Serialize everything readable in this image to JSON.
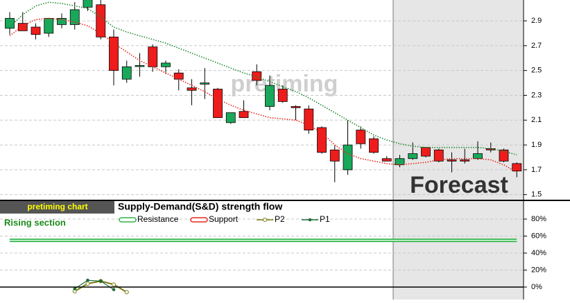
{
  "chart_data": [
    {
      "type": "candlestick",
      "annotations": [
        "pretiming",
        "Forecast"
      ],
      "categories": [
        null,
        null,
        null,
        null,
        null,
        null,
        null,
        null,
        null,
        null,
        null,
        null,
        null,
        null,
        null,
        null,
        null,
        null,
        null,
        null,
        null,
        null,
        null,
        null,
        null,
        null,
        null,
        null,
        null,
        null,
        null,
        null,
        null,
        null,
        null,
        null,
        null,
        null,
        null,
        null
      ],
      "open": [
        2.84,
        2.88,
        2.85,
        2.8,
        2.87,
        2.87,
        3.01,
        3.03,
        2.77,
        2.43,
        2.54,
        2.69,
        2.53,
        2.48,
        2.36,
        2.39,
        2.35,
        2.08,
        2.17,
        2.49,
        2.21,
        2.35,
        2.21,
        2.19,
        2.04,
        1.86,
        1.7,
        2.02,
        1.95,
        1.79,
        1.74,
        1.79,
        1.88,
        1.86,
        1.78,
        1.78,
        1.79,
        1.87,
        1.86,
        1.75
      ],
      "high": [
        2.97,
        2.97,
        2.88,
        2.92,
        2.96,
        3.05,
        3.07,
        3.07,
        2.83,
        2.58,
        2.64,
        2.71,
        2.58,
        2.51,
        2.43,
        2.52,
        2.36,
        2.15,
        2.26,
        2.55,
        2.46,
        2.38,
        2.22,
        2.22,
        2.05,
        1.9,
        2.1,
        2.05,
        1.97,
        1.81,
        1.82,
        1.92,
        1.88,
        1.87,
        1.84,
        1.87,
        1.93,
        1.92,
        1.87,
        1.76
      ],
      "low": [
        2.79,
        2.83,
        2.75,
        2.77,
        2.84,
        2.83,
        2.98,
        2.75,
        2.38,
        2.4,
        2.45,
        2.49,
        2.47,
        2.34,
        2.22,
        2.27,
        2.13,
        2.07,
        2.12,
        2.38,
        2.18,
        2.24,
        2.1,
        1.99,
        1.83,
        1.6,
        1.66,
        1.87,
        1.83,
        1.77,
        1.72,
        1.78,
        1.8,
        1.76,
        1.68,
        1.75,
        1.78,
        1.84,
        1.76,
        1.64
      ],
      "close": [
        2.92,
        2.82,
        2.79,
        2.92,
        2.92,
        2.99,
        3.07,
        2.77,
        2.5,
        2.53,
        2.54,
        2.53,
        2.56,
        2.43,
        2.34,
        2.4,
        2.12,
        2.16,
        2.12,
        2.42,
        2.38,
        2.25,
        2.2,
        2.02,
        1.84,
        1.77,
        1.9,
        1.91,
        1.84,
        1.77,
        1.79,
        1.83,
        1.81,
        1.77,
        1.77,
        1.77,
        1.83,
        1.86,
        1.77,
        1.69
      ],
      "up_color": "#19a85a",
      "down_color": "#ee1c1c",
      "lines": [
        {
          "color": "#1e8a2e",
          "values": [
            2.85,
            2.95,
            3.02,
            3.05,
            3.04,
            3.02,
            3.0,
            2.93,
            2.85,
            2.81,
            2.78,
            2.75,
            2.72,
            2.68,
            2.64,
            2.6,
            2.56,
            2.52,
            2.48,
            2.45,
            2.41,
            2.37,
            2.33,
            2.28,
            2.22,
            2.16,
            2.1,
            2.04,
            1.98,
            1.94,
            1.91,
            1.89,
            1.88,
            1.88,
            1.88,
            1.88,
            1.88,
            1.87,
            1.85,
            1.82
          ]
        },
        {
          "color": "#e8261c",
          "values": [
            2.78,
            2.86,
            2.91,
            2.92,
            2.91,
            2.89,
            2.86,
            2.8,
            2.72,
            2.65,
            2.58,
            2.53,
            2.48,
            2.43,
            2.38,
            2.33,
            2.27,
            2.22,
            2.18,
            2.15,
            2.12,
            2.11,
            2.1,
            2.06,
            2.0,
            1.9,
            1.83,
            1.79,
            1.77,
            1.75,
            1.74,
            1.75,
            1.76,
            1.78,
            1.79,
            1.79,
            1.79,
            1.78,
            1.74,
            1.68
          ]
        }
      ],
      "ylim": [
        1.459,
        3.068
      ],
      "yticks": [
        1.5,
        1.7,
        1.9,
        2.1,
        2.3,
        2.5,
        2.7,
        2.9
      ],
      "grid": true
    },
    {
      "type": "line",
      "label": "pretiming chart",
      "title": "Supply-Demand(S&D)  strength flow",
      "annotation": "Rising section",
      "series": [
        {
          "name": "Resistance",
          "color": "#2fb24a",
          "values": [
            55,
            55,
            55,
            55,
            55,
            55,
            55,
            55,
            55,
            55,
            55,
            55,
            55,
            55,
            55,
            55,
            55,
            55,
            55,
            55,
            55,
            55,
            55,
            55,
            55,
            55,
            55,
            55,
            55,
            55,
            55,
            55,
            55,
            55,
            55,
            55,
            55,
            55,
            55,
            55
          ]
        },
        {
          "name": "Support",
          "color": "#e8261c",
          "values": [
            null,
            null,
            null,
            null,
            null,
            null,
            null,
            null,
            null,
            null,
            null,
            null,
            null,
            null,
            null,
            null,
            null,
            null,
            null,
            null,
            null,
            null,
            null,
            null,
            null,
            null,
            null,
            null,
            null,
            null,
            null,
            null,
            null,
            null,
            null,
            null,
            null,
            null,
            null,
            null
          ]
        },
        {
          "name": "P2",
          "color": "#7a7a10",
          "values": [
            null,
            null,
            null,
            null,
            null,
            -5,
            4,
            7,
            3,
            -6,
            null,
            null,
            null,
            null,
            null,
            null,
            null,
            null,
            null,
            null,
            null,
            null,
            null,
            null,
            null,
            null,
            null,
            null,
            null,
            null,
            null,
            null,
            null,
            null,
            null,
            null,
            null,
            null,
            null,
            null
          ]
        },
        {
          "name": "P1",
          "color": "#1e6e3a",
          "values": [
            null,
            null,
            null,
            null,
            null,
            -2,
            8,
            7,
            -3,
            null,
            null,
            null,
            null,
            null,
            null,
            null,
            null,
            null,
            null,
            null,
            null,
            null,
            null,
            null,
            null,
            null,
            null,
            null,
            null,
            null,
            null,
            null,
            null,
            null,
            null,
            null,
            null,
            null,
            null,
            null
          ]
        }
      ],
      "ylim": [
        -14.7,
        101.2
      ],
      "yticks": [
        {
          "value": 0,
          "label": "0%"
        },
        {
          "value": 20,
          "label": "20%"
        },
        {
          "value": 40,
          "label": "40%"
        },
        {
          "value": 60,
          "label": "60%"
        },
        {
          "value": 80,
          "label": "80%"
        }
      ],
      "grid": true
    }
  ]
}
